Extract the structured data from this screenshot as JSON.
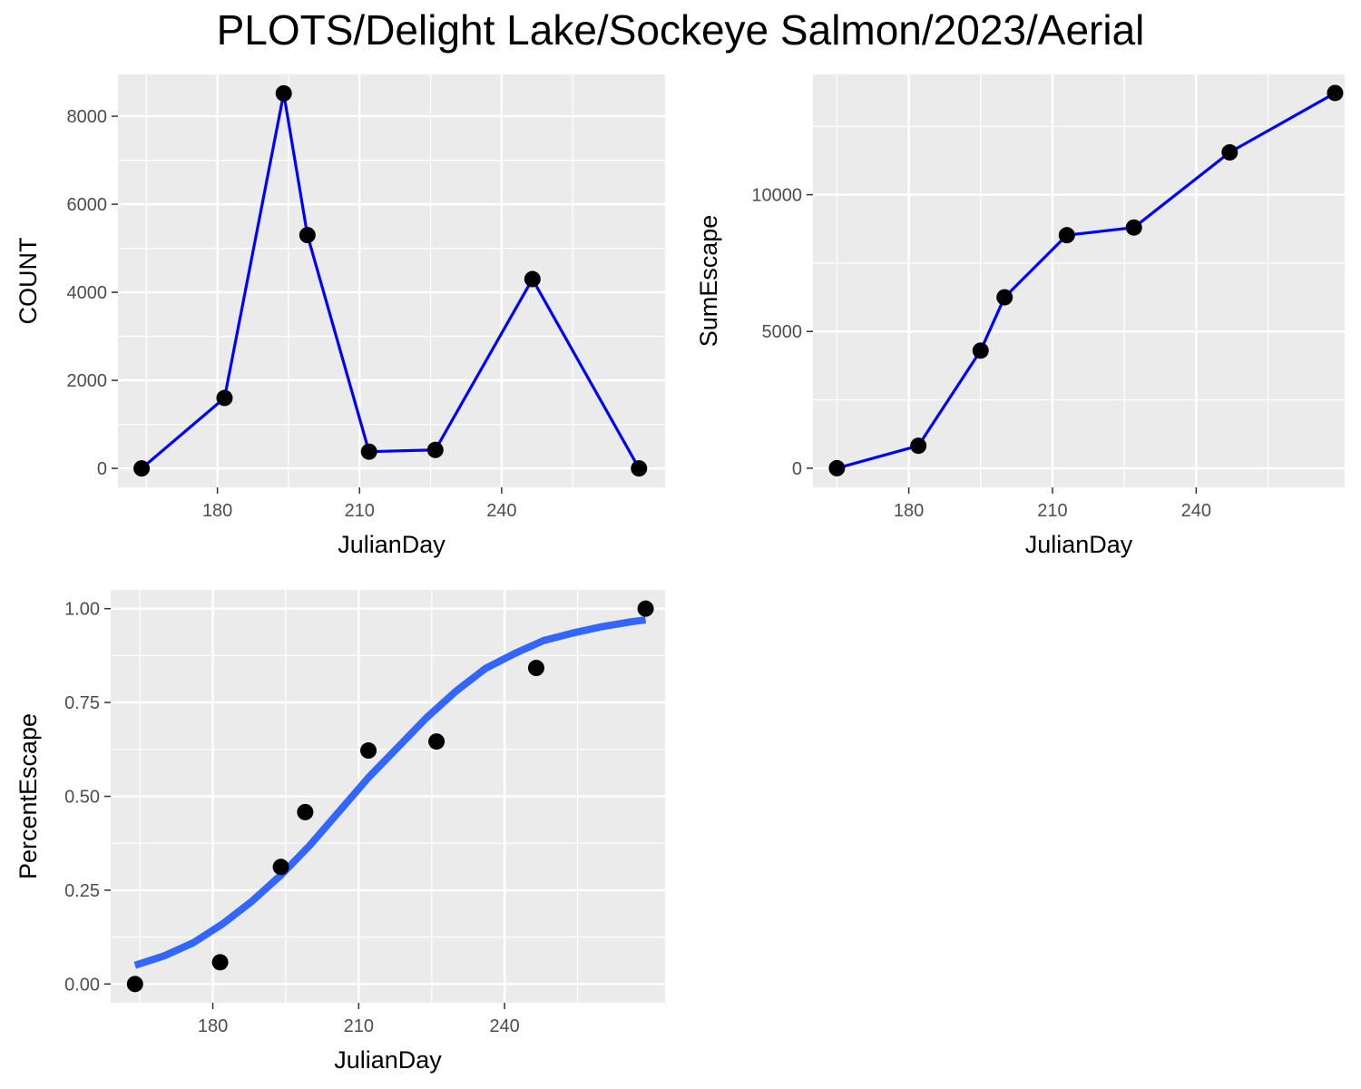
{
  "title": "PLOTS/Delight Lake/Sockeye Salmon/2023/Aerial",
  "colors": {
    "panel_bg": "#ebebeb",
    "grid_major": "#ffffff",
    "line": "#0000ff",
    "smooth": "#3366ff",
    "point": "#000000",
    "tick_text": "#4d4d4d"
  },
  "chart_data": [
    {
      "type": "line",
      "panel": "top-left",
      "xlabel": "JulianDay",
      "ylabel": "COUNT",
      "xlim": [
        159,
        274.5
      ],
      "ylim": [
        -430,
        8950
      ],
      "xticks": [
        180,
        210,
        240
      ],
      "yticks": [
        0,
        2000,
        4000,
        6000,
        8000
      ],
      "ytick_labels": [
        "0",
        "2000",
        "4000",
        "6000",
        "8000"
      ],
      "x": [
        164,
        181.5,
        194,
        199,
        212,
        226,
        246.5,
        269
      ],
      "y": [
        0,
        1600,
        8520,
        5300,
        380,
        420,
        4300,
        0
      ],
      "grid": true,
      "points": true
    },
    {
      "type": "line",
      "panel": "top-right",
      "xlabel": "JulianDay",
      "ylabel": "SumEscape",
      "xlim": [
        160,
        271
      ],
      "ylim": [
        -700,
        14400
      ],
      "xticks": [
        180,
        210,
        240
      ],
      "yticks": [
        0,
        5000,
        10000
      ],
      "ytick_labels": [
        "0",
        "5000",
        "10000"
      ],
      "x": [
        165,
        182,
        195,
        200,
        213,
        227,
        247,
        269
      ],
      "y": [
        0,
        820,
        4300,
        6250,
        8520,
        8800,
        11550,
        13720
      ],
      "grid": true,
      "points": true
    },
    {
      "type": "scatter",
      "panel": "bottom-left",
      "xlabel": "JulianDay",
      "ylabel": "PercentEscape",
      "xlim": [
        159,
        273
      ],
      "ylim": [
        -0.05,
        1.05
      ],
      "xticks": [
        180,
        210,
        240
      ],
      "yticks": [
        0,
        0.25,
        0.5,
        0.75,
        1
      ],
      "ytick_labels": [
        "0.00",
        "0.25",
        "0.50",
        "0.75",
        "1.00"
      ],
      "x": [
        164,
        181.5,
        194,
        199,
        212,
        226,
        246.5,
        269
      ],
      "y": [
        0,
        0.058,
        0.312,
        0.458,
        0.622,
        0.646,
        0.842,
        1.0
      ],
      "smooth": {
        "type": "logistic",
        "x": [
          164,
          170,
          176,
          182,
          188,
          194,
          200,
          206,
          212,
          218,
          224,
          230,
          236,
          242,
          248,
          254,
          260,
          266,
          269
        ],
        "y": [
          0.05,
          0.075,
          0.11,
          0.16,
          0.22,
          0.29,
          0.37,
          0.46,
          0.55,
          0.63,
          0.71,
          0.78,
          0.84,
          0.88,
          0.915,
          0.935,
          0.952,
          0.965,
          0.97
        ]
      },
      "grid": true,
      "points": true
    }
  ]
}
